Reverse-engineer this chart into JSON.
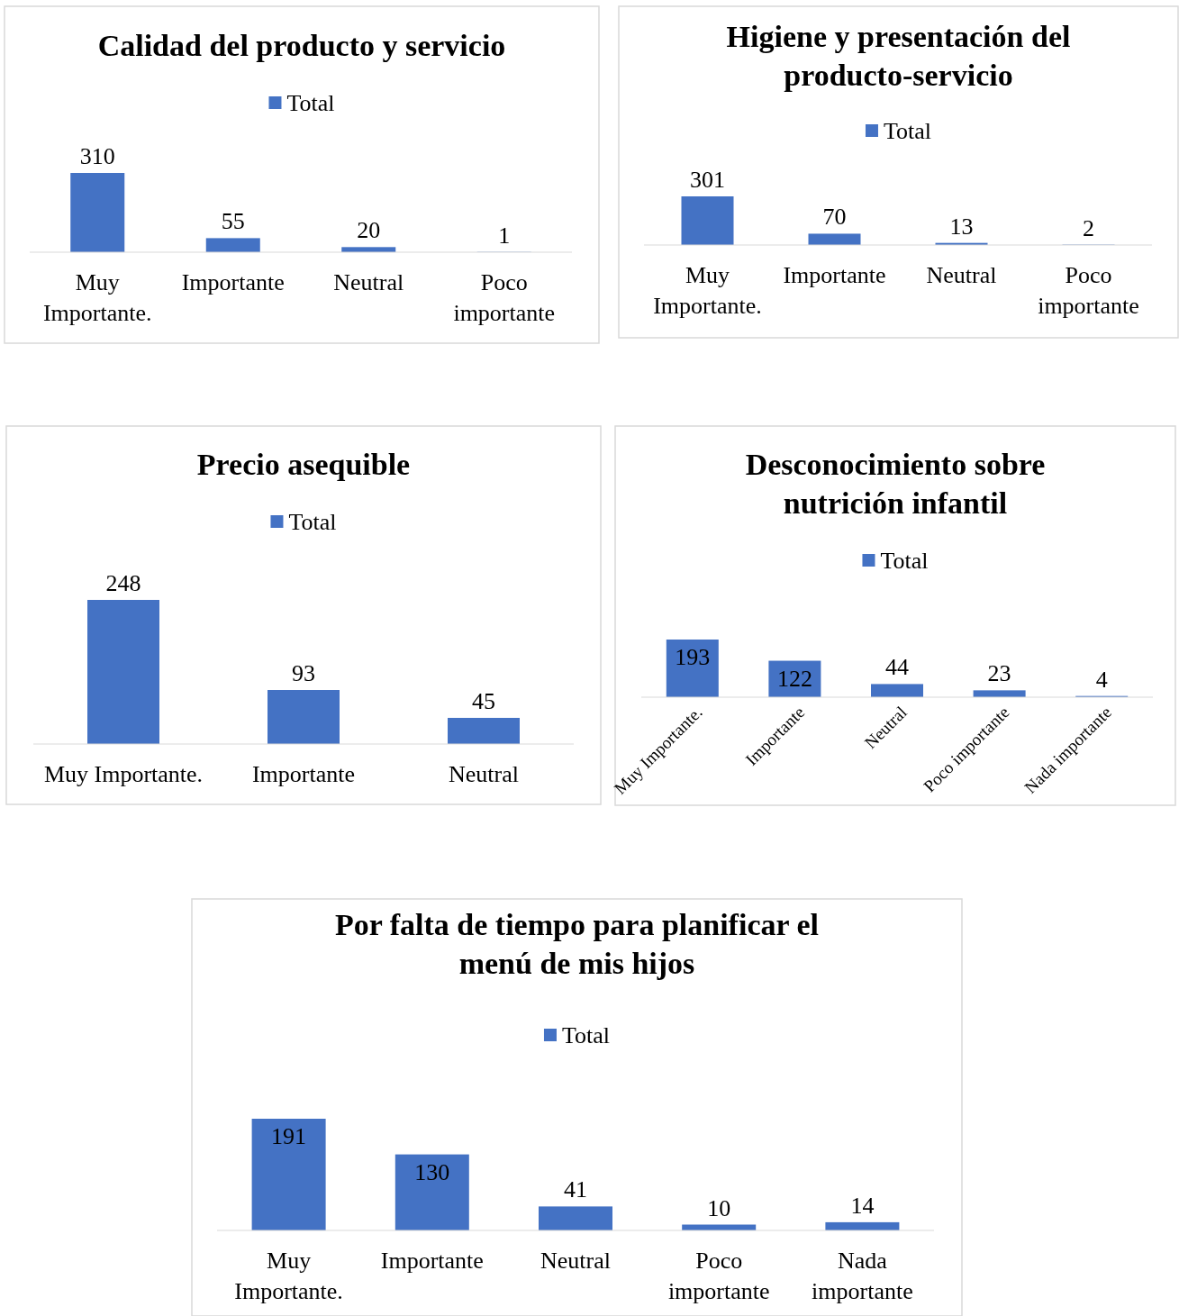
{
  "chart_data": [
    {
      "type": "bar",
      "title": "Calidad del producto y servicio",
      "categories": [
        "Muy Importante.",
        "Importante",
        "Neutral",
        "Poco importante"
      ],
      "series": [
        {
          "name": "Total",
          "color": "#4472c4",
          "values": [
            310,
            55,
            20,
            1
          ]
        }
      ],
      "data_labels": true,
      "legend": "top"
    },
    {
      "type": "bar",
      "title": "Higiene y presentación del producto-servicio",
      "categories": [
        "Muy Importante.",
        "Importante",
        "Neutral",
        "Poco importante"
      ],
      "series": [
        {
          "name": "Total",
          "color": "#4472c4",
          "values": [
            301,
            70,
            13,
            2
          ]
        }
      ],
      "data_labels": true,
      "legend": "top"
    },
    {
      "type": "bar",
      "title": "Precio asequible",
      "categories": [
        "Muy Importante.",
        "Importante",
        "Neutral"
      ],
      "series": [
        {
          "name": "Total",
          "color": "#4472c4",
          "values": [
            248,
            93,
            45
          ]
        }
      ],
      "data_labels": true,
      "legend": "top"
    },
    {
      "type": "bar",
      "title": "Desconocimiento sobre nutrición infantil",
      "categories": [
        "Muy Importante.",
        "Importante",
        "Neutral",
        "Poco importante",
        "Nada importante"
      ],
      "series": [
        {
          "name": "Total",
          "color": "#4472c4",
          "values": [
            193,
            122,
            44,
            23,
            4
          ]
        }
      ],
      "data_labels": true,
      "legend": "top"
    },
    {
      "type": "bar",
      "title": "Por falta de tiempo para planificar el menú de mis hijos",
      "categories": [
        "Muy Importante.",
        "Importante",
        "Neutral",
        "Poco importante",
        "Nada importante"
      ],
      "series": [
        {
          "name": "Total",
          "color": "#4472c4",
          "values": [
            191,
            130,
            41,
            10,
            14
          ]
        }
      ],
      "data_labels": true,
      "legend": "top"
    }
  ]
}
